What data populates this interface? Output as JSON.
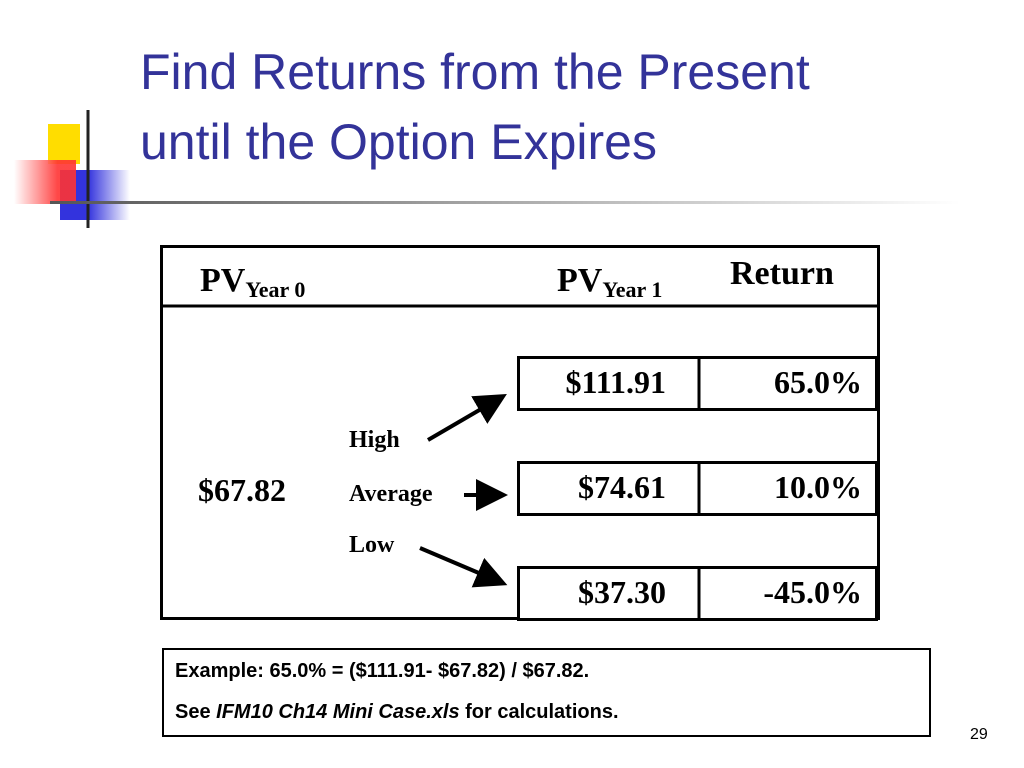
{
  "title": {
    "lines": [
      "Find Returns from the Present",
      "until the Option Expires"
    ]
  },
  "table": {
    "headers": {
      "pv0": "PV",
      "pv0_sub": "Year 0",
      "pv1": "PV",
      "pv1_sub": "Year 1",
      "ret": "Return"
    },
    "start": "$67.82",
    "scenarios": [
      "High",
      "Average",
      "Low"
    ],
    "rows": [
      [
        "$111.91",
        "65.0%"
      ],
      [
        "$74.61",
        "10.0%"
      ],
      [
        "$37.30",
        "-45.0%"
      ]
    ]
  },
  "note": {
    "line1": "Example: 65.0% = ($111.91- $67.82) / $67.82.",
    "line2_pre": "See",
    "line2_file": "IFM10 Ch14 Mini Case.xls",
    "line2_post": "for calculations."
  },
  "page_number": "29"
}
